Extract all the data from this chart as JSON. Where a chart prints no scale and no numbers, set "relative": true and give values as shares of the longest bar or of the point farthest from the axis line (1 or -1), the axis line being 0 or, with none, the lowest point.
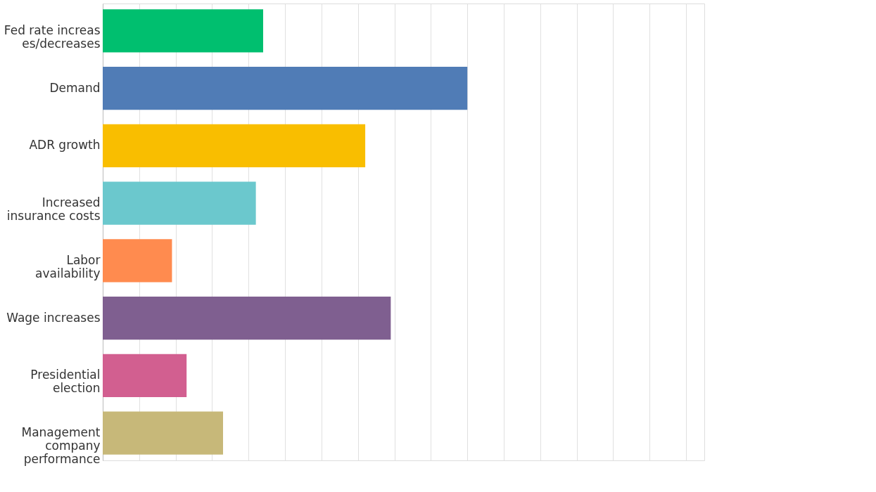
{
  "chart_data": {
    "type": "bar",
    "orientation": "horizontal",
    "relative": true,
    "grid": "x",
    "categories": [
      "Fed rate increases/decreases",
      "Demand",
      "ADR growth",
      "Increased insurance costs",
      "Labor availability",
      "Wage increases",
      "Presidential election",
      "Management company performance"
    ],
    "values": [
      0.44,
      1,
      0.72,
      0.42,
      0.19,
      0.79,
      0.23,
      0.33
    ],
    "colors": [
      "#00bf6f",
      "#507cb6",
      "#f9be00",
      "#6bc8cd",
      "#ff8b4f",
      "#7f5f90",
      "#d25f90",
      "#c7b879"
    ]
  }
}
